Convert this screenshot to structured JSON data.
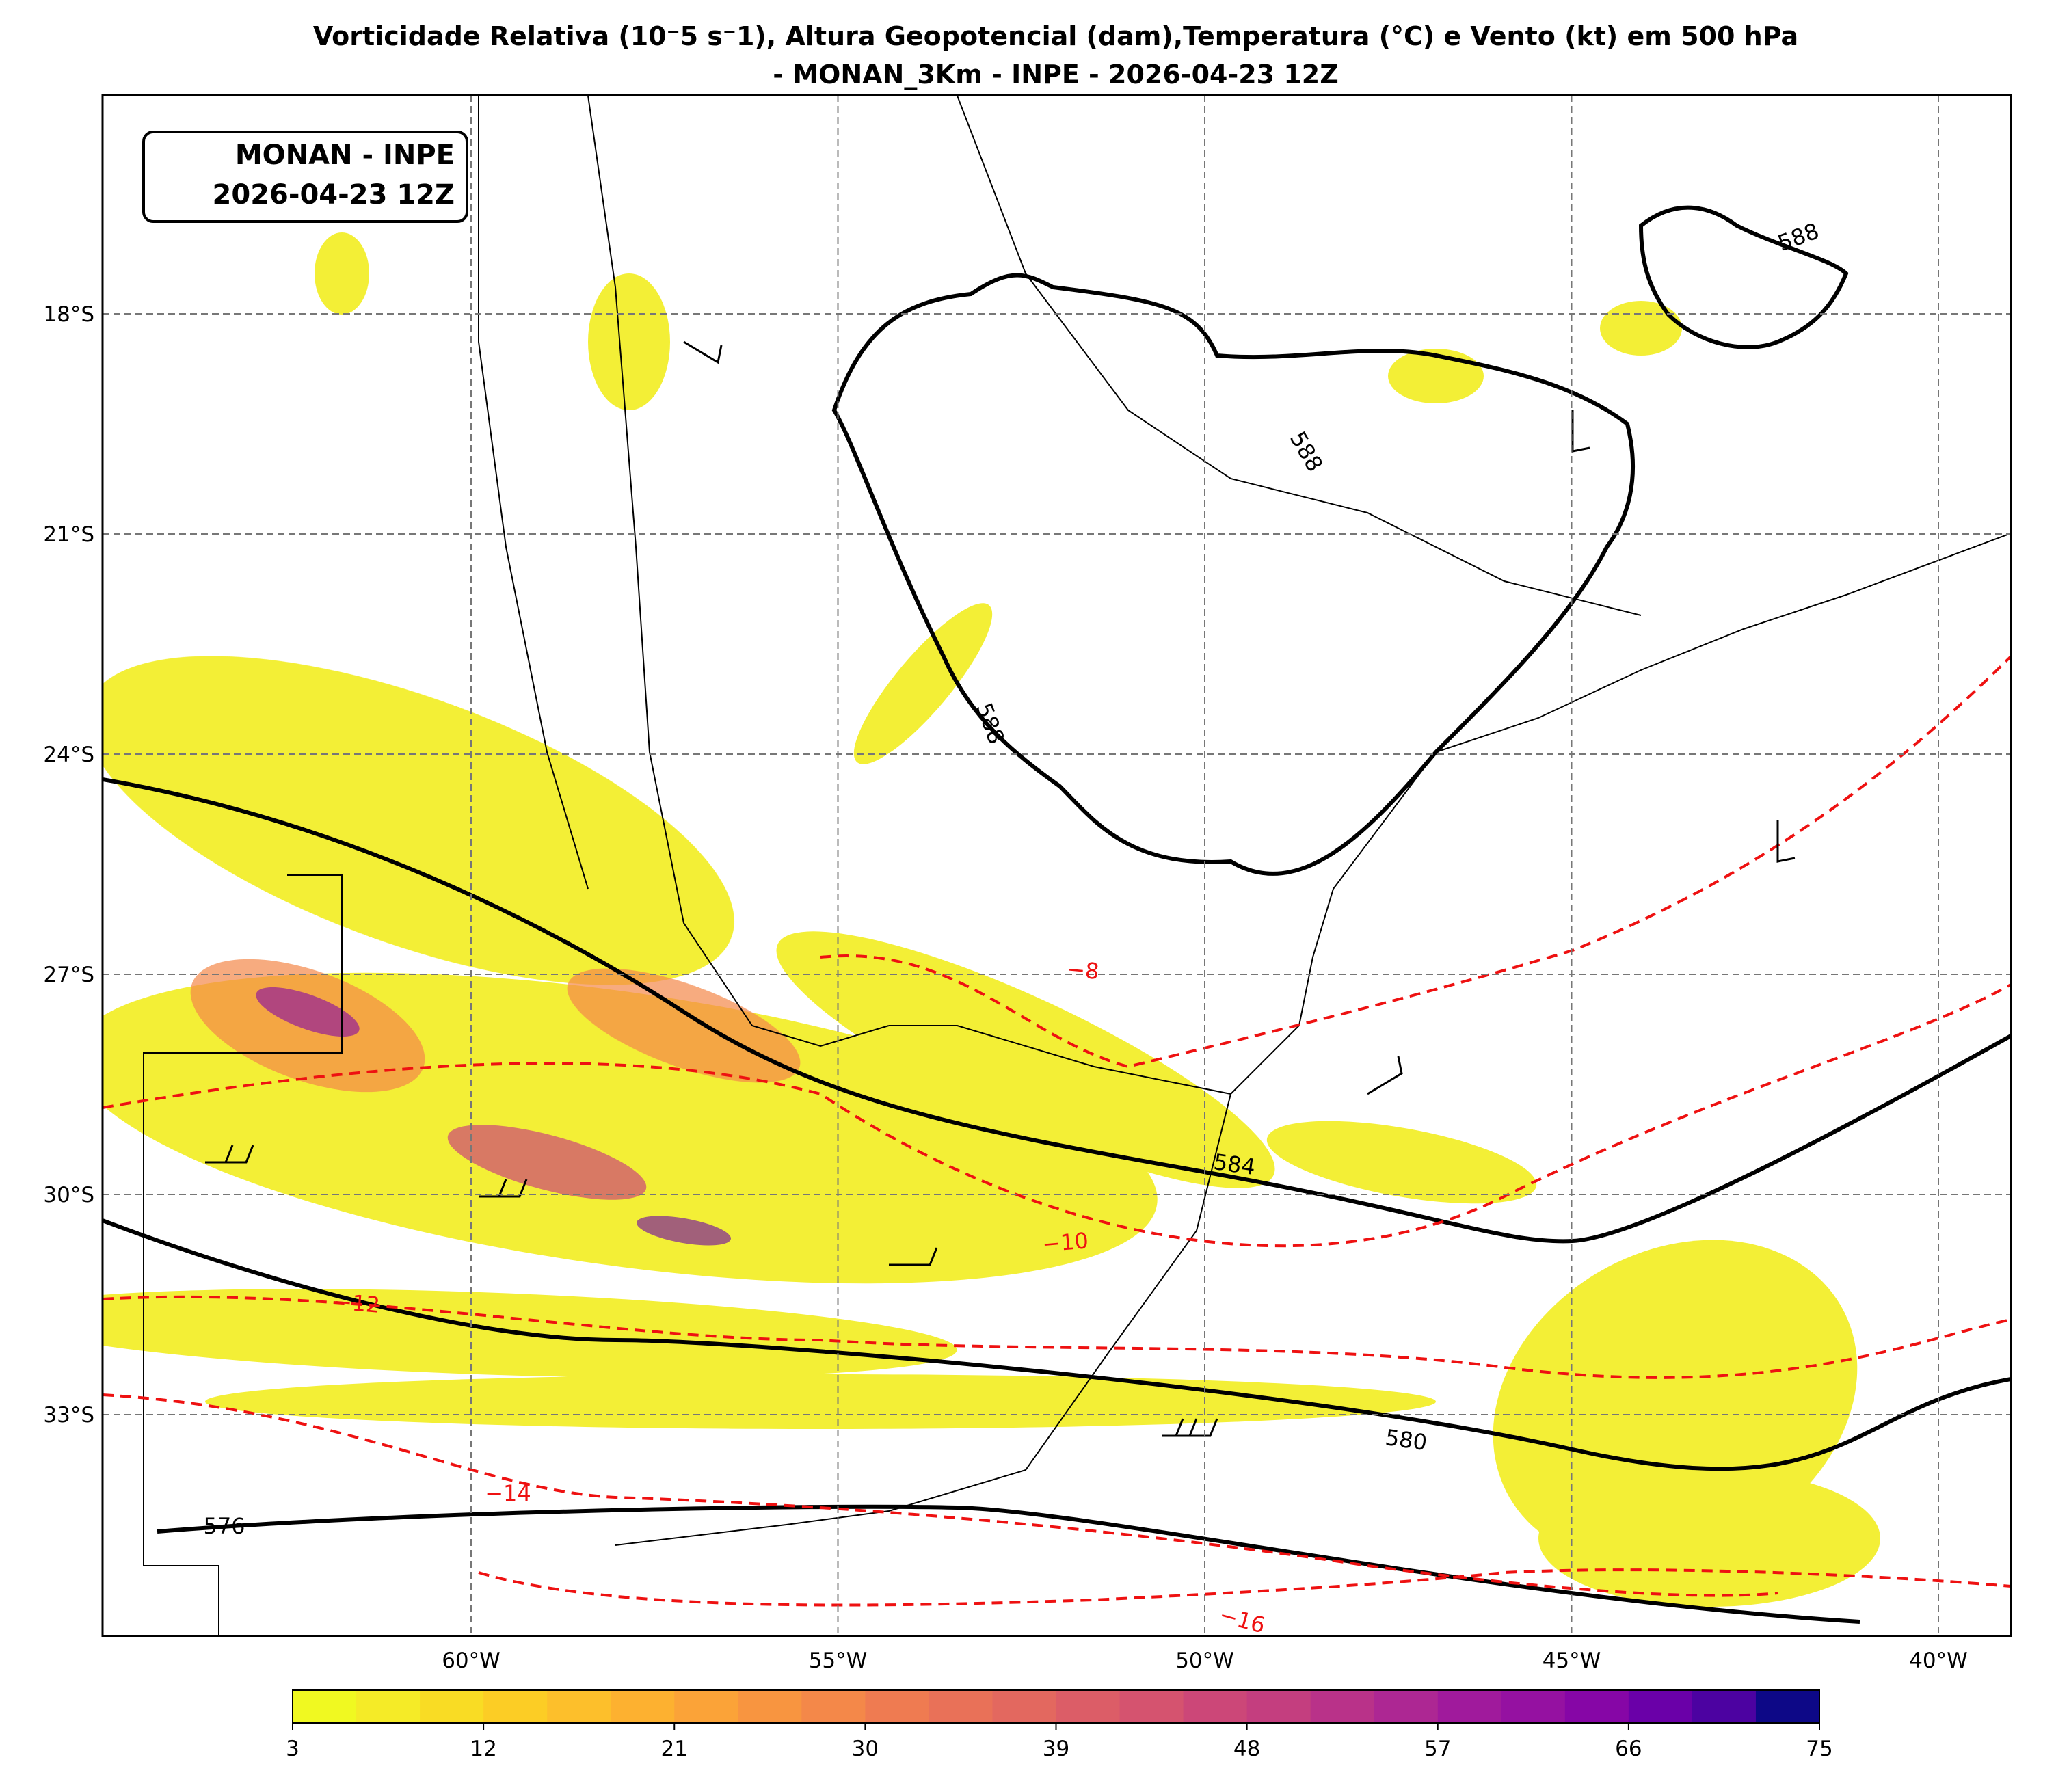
{
  "header": {
    "title_lines": [
      "Vorticidade Relativa (10⁻5 s⁻1), Altura Geopotencial (dam),Temperatura (°C) e Vento (kt) em 500 hPa",
      "- MONAN_3Km - INPE - 2026-04-23 12Z"
    ]
  },
  "info_box": {
    "lines": [
      "MONAN - INPE",
      "2026-04-23 12Z"
    ]
  },
  "lat_labels": [
    "18°S",
    "21°S",
    "24°S",
    "27°S",
    "30°S",
    "33°S"
  ],
  "lon_labels": [
    "60°W",
    "55°W",
    "50°W",
    "45°W",
    "40°W"
  ],
  "height_contour_labels": [
    "588",
    "588",
    "588",
    "584",
    "580",
    "576"
  ],
  "temperature_contour_labels": [
    "−8",
    "−10",
    "−12",
    "−14",
    "−16"
  ],
  "colorbar": {
    "range": [
      3,
      75
    ],
    "ticks": [
      3,
      12,
      21,
      30,
      39,
      48,
      57,
      66,
      75
    ],
    "colors": [
      "#f0f921",
      "#f5eb27",
      "#f9dc24",
      "#fccd25",
      "#fdbf2b",
      "#fdb130",
      "#fba338",
      "#f89540",
      "#f48849",
      "#ef7b51",
      "#e97158",
      "#e3685f",
      "#dc5d67",
      "#d5536f",
      "#cc4778",
      "#c43e7f",
      "#b93289",
      "#ad2793",
      "#a01a9c",
      "#9511a1",
      "#8606a6",
      "#6a00a8",
      "#4c02a1",
      "#0d0887"
    ]
  }
}
